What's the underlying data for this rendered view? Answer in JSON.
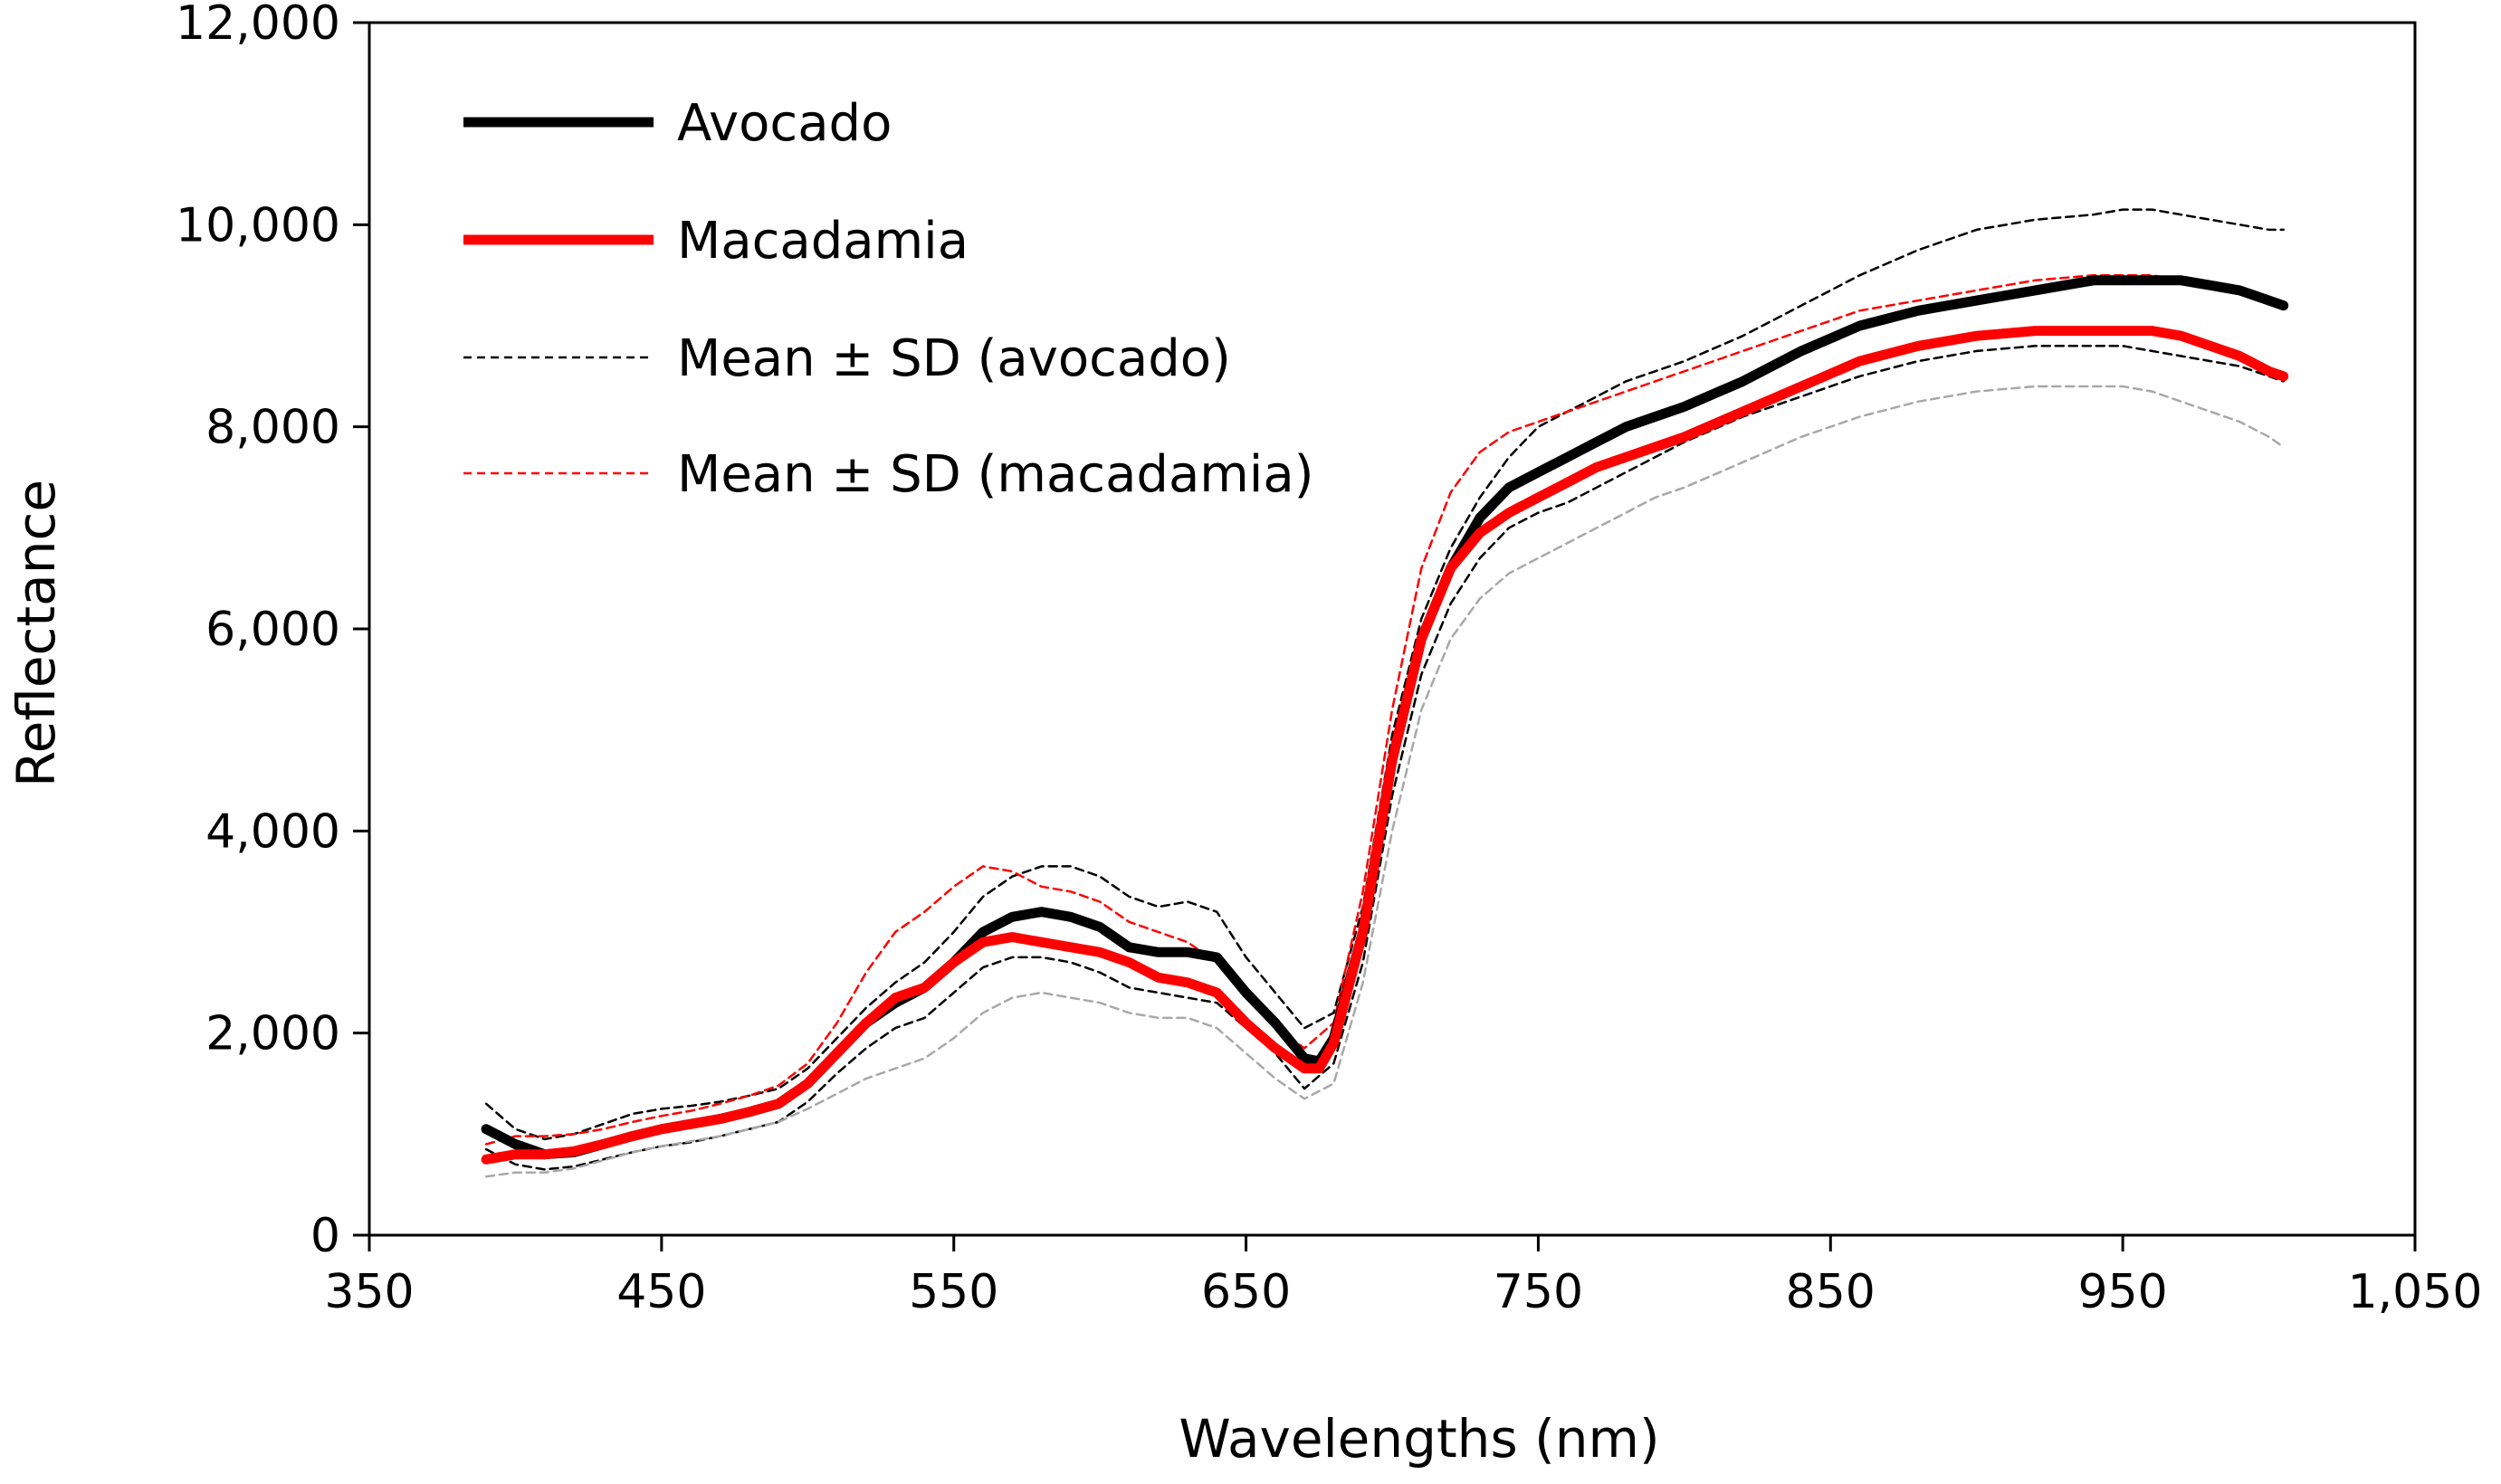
{
  "chart_data": {
    "type": "line",
    "title": "",
    "xlabel": "Wavelengths (nm)",
    "ylabel": "Reflectance",
    "xlim": [
      350,
      1050
    ],
    "ylim": [
      0,
      12000
    ],
    "xticks": [
      350,
      450,
      550,
      650,
      750,
      850,
      950,
      1050
    ],
    "xtick_labels": [
      "350",
      "450",
      "550",
      "650",
      "750",
      "850",
      "950",
      "1,050"
    ],
    "yticks": [
      0,
      2000,
      4000,
      6000,
      8000,
      10000,
      12000
    ],
    "ytick_labels": [
      "0",
      "2,000",
      "4,000",
      "6,000",
      "8,000",
      "10,000",
      "12,000"
    ],
    "grid": false,
    "legend_position": "top-left",
    "legend": [
      {
        "label": "Avocado",
        "series": "avocado",
        "color": "#000000",
        "style": "solid-thick"
      },
      {
        "label": "Macadamia",
        "series": "macadamia",
        "color": "#ff0000",
        "style": "solid-thick"
      },
      {
        "label": "Mean ± SD (avocado)",
        "series": "avocado_upper",
        "color": "#000000",
        "style": "dashed"
      },
      {
        "label": "Mean ± SD (macadamia)",
        "series": "macadamia_upper",
        "color": "#ff0000",
        "style": "dashed"
      }
    ],
    "series": [
      {
        "name": "avocado",
        "color": "#000000",
        "style": "solid-thick",
        "x": [
          390,
          400,
          410,
          420,
          430,
          440,
          450,
          460,
          470,
          480,
          490,
          500,
          510,
          520,
          530,
          540,
          550,
          560,
          570,
          580,
          590,
          600,
          610,
          620,
          630,
          640,
          650,
          660,
          670,
          675,
          680,
          690,
          700,
          710,
          720,
          730,
          740,
          750,
          760,
          770,
          780,
          790,
          800,
          820,
          840,
          860,
          880,
          900,
          920,
          940,
          950,
          960,
          970,
          980,
          990,
          1000,
          1005
        ],
        "y": [
          1050,
          900,
          800,
          820,
          900,
          980,
          1050,
          1100,
          1150,
          1220,
          1300,
          1500,
          1800,
          2100,
          2300,
          2450,
          2700,
          3000,
          3150,
          3200,
          3150,
          3050,
          2850,
          2800,
          2800,
          2750,
          2400,
          2100,
          1750,
          1720,
          1950,
          3000,
          4700,
          5900,
          6600,
          7100,
          7400,
          7550,
          7700,
          7850,
          8000,
          8100,
          8200,
          8450,
          8750,
          9000,
          9150,
          9250,
          9350,
          9450,
          9450,
          9450,
          9450,
          9400,
          9350,
          9250,
          9200
        ]
      },
      {
        "name": "macadamia",
        "color": "#ff0000",
        "style": "solid-thick",
        "x": [
          390,
          400,
          410,
          420,
          430,
          440,
          450,
          460,
          470,
          480,
          490,
          500,
          510,
          520,
          530,
          540,
          550,
          560,
          570,
          580,
          590,
          600,
          610,
          620,
          630,
          640,
          650,
          660,
          670,
          675,
          680,
          690,
          700,
          710,
          720,
          730,
          740,
          750,
          760,
          770,
          780,
          790,
          800,
          820,
          840,
          860,
          880,
          900,
          920,
          940,
          950,
          960,
          970,
          980,
          990,
          1000,
          1005
        ],
        "y": [
          750,
          800,
          800,
          830,
          900,
          980,
          1050,
          1100,
          1150,
          1220,
          1300,
          1500,
          1800,
          2100,
          2350,
          2450,
          2700,
          2900,
          2950,
          2900,
          2850,
          2800,
          2700,
          2550,
          2500,
          2400,
          2100,
          1850,
          1650,
          1650,
          1900,
          3000,
          4700,
          5900,
          6600,
          6950,
          7150,
          7300,
          7450,
          7600,
          7700,
          7800,
          7900,
          8150,
          8400,
          8650,
          8800,
          8900,
          8950,
          8950,
          8950,
          8950,
          8900,
          8800,
          8700,
          8550,
          8500
        ]
      },
      {
        "name": "avocado_upper",
        "color": "#000000",
        "style": "dashed",
        "x": [
          390,
          400,
          410,
          420,
          430,
          440,
          450,
          460,
          470,
          480,
          490,
          500,
          510,
          520,
          530,
          540,
          550,
          560,
          570,
          580,
          590,
          600,
          610,
          620,
          630,
          640,
          650,
          660,
          670,
          680,
          690,
          700,
          710,
          720,
          730,
          740,
          750,
          760,
          770,
          780,
          790,
          800,
          820,
          840,
          860,
          880,
          900,
          920,
          940,
          950,
          960,
          970,
          980,
          990,
          1000,
          1005
        ],
        "y": [
          1300,
          1050,
          950,
          1000,
          1100,
          1200,
          1250,
          1280,
          1320,
          1380,
          1450,
          1650,
          1950,
          2250,
          2500,
          2700,
          3000,
          3350,
          3550,
          3650,
          3650,
          3550,
          3350,
          3250,
          3300,
          3200,
          2750,
          2400,
          2050,
          2200,
          3250,
          4950,
          6100,
          6800,
          7300,
          7700,
          8000,
          8150,
          8300,
          8450,
          8550,
          8650,
          8900,
          9200,
          9500,
          9750,
          9950,
          10050,
          10100,
          10150,
          10150,
          10100,
          10050,
          10000,
          9950,
          9950
        ]
      },
      {
        "name": "avocado_lower",
        "color": "#000000",
        "style": "dashed",
        "x": [
          390,
          400,
          410,
          420,
          430,
          440,
          450,
          460,
          470,
          480,
          490,
          500,
          510,
          520,
          530,
          540,
          550,
          560,
          570,
          580,
          590,
          600,
          610,
          620,
          630,
          640,
          650,
          660,
          670,
          680,
          690,
          700,
          710,
          720,
          730,
          740,
          750,
          760,
          770,
          780,
          790,
          800,
          820,
          840,
          860,
          880,
          900,
          920,
          940,
          950,
          960,
          970,
          980,
          990,
          1000,
          1005
        ],
        "y": [
          850,
          700,
          650,
          680,
          750,
          820,
          880,
          920,
          980,
          1050,
          1120,
          1320,
          1600,
          1850,
          2050,
          2150,
          2400,
          2650,
          2750,
          2750,
          2700,
          2600,
          2450,
          2400,
          2350,
          2300,
          2050,
          1800,
          1450,
          1700,
          2700,
          4350,
          5550,
          6250,
          6700,
          7000,
          7150,
          7250,
          7400,
          7550,
          7700,
          7850,
          8100,
          8300,
          8500,
          8650,
          8750,
          8800,
          8800,
          8800,
          8750,
          8700,
          8650,
          8600,
          8500,
          8450
        ]
      },
      {
        "name": "macadamia_upper",
        "color": "#ff0000",
        "style": "dashed",
        "x": [
          390,
          400,
          410,
          420,
          430,
          440,
          450,
          460,
          470,
          480,
          490,
          500,
          510,
          520,
          530,
          540,
          550,
          560,
          570,
          580,
          590,
          600,
          610,
          620,
          630,
          640,
          650,
          660,
          670,
          680,
          690,
          700,
          710,
          720,
          730,
          740,
          750,
          760,
          770,
          780,
          790,
          800,
          820,
          840,
          860,
          880,
          900,
          920,
          940,
          950,
          960,
          970,
          980,
          990,
          1000,
          1005
        ],
        "y": [
          900,
          980,
          980,
          1000,
          1050,
          1120,
          1180,
          1230,
          1300,
          1380,
          1480,
          1700,
          2100,
          2600,
          3000,
          3200,
          3450,
          3650,
          3600,
          3450,
          3400,
          3300,
          3100,
          3000,
          2900,
          2700,
          2350,
          2050,
          1850,
          2100,
          3400,
          5200,
          6600,
          7350,
          7750,
          7950,
          8050,
          8150,
          8250,
          8350,
          8450,
          8550,
          8750,
          8950,
          9150,
          9250,
          9350,
          9450,
          9500,
          9500,
          9500,
          9450,
          9400,
          9350,
          9250,
          9200
        ]
      },
      {
        "name": "macadamia_lower",
        "color": "#a8a8a8",
        "style": "dashed",
        "x": [
          390,
          400,
          410,
          420,
          430,
          440,
          450,
          460,
          470,
          480,
          490,
          500,
          510,
          520,
          530,
          540,
          550,
          560,
          570,
          580,
          590,
          600,
          610,
          620,
          630,
          640,
          650,
          660,
          670,
          680,
          690,
          700,
          710,
          720,
          730,
          740,
          750,
          760,
          770,
          780,
          790,
          800,
          820,
          840,
          860,
          880,
          900,
          920,
          940,
          950,
          960,
          970,
          980,
          990,
          1000,
          1005
        ],
        "y": [
          580,
          620,
          620,
          660,
          740,
          820,
          880,
          930,
          980,
          1050,
          1120,
          1250,
          1400,
          1550,
          1650,
          1750,
          1950,
          2200,
          2350,
          2400,
          2350,
          2300,
          2200,
          2150,
          2150,
          2050,
          1800,
          1550,
          1350,
          1500,
          2500,
          4000,
          5200,
          5900,
          6300,
          6550,
          6700,
          6850,
          7000,
          7150,
          7300,
          7400,
          7650,
          7900,
          8100,
          8250,
          8350,
          8400,
          8400,
          8400,
          8350,
          8250,
          8150,
          8050,
          7900,
          7800
        ]
      }
    ]
  }
}
